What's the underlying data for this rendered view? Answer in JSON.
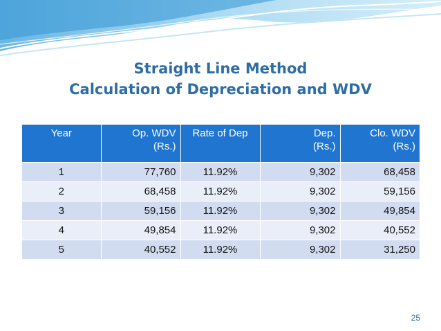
{
  "title": {
    "line1": "Straight Line Method",
    "line2": "Calculation of Depreciation and WDV"
  },
  "table": {
    "headers": [
      {
        "line1": "Year",
        "line2": ""
      },
      {
        "line1": "Op. WDV",
        "line2": "(Rs.)"
      },
      {
        "line1": "Rate of Dep",
        "line2": ""
      },
      {
        "line1": "Dep.",
        "line2": "(Rs.)"
      },
      {
        "line1": "Clo. WDV",
        "line2": "(Rs.)"
      }
    ],
    "rows": [
      [
        "1",
        "77,760",
        "11.92%",
        "9,302",
        "68,458"
      ],
      [
        "2",
        "68,458",
        "11.92%",
        "9,302",
        "59,156"
      ],
      [
        "3",
        "59,156",
        "11.92%",
        "9,302",
        "49,854"
      ],
      [
        "4",
        "49,854",
        "11.92%",
        "9,302",
        "40,552"
      ],
      [
        "5",
        "40,552",
        "11.92%",
        "9,302",
        "31,250"
      ]
    ]
  },
  "page_number": "25",
  "colors": {
    "title": "#2E6DA4",
    "header_bg": "#1F75D0",
    "row_odd": "#D2DCF1",
    "row_even": "#E9EEF8",
    "wave": "#7FC3E8"
  }
}
